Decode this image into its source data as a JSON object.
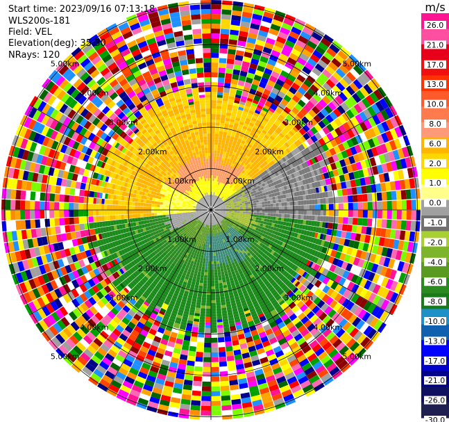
{
  "info": {
    "start_time": "Start time: 2023/09/16 07:13:18",
    "instrument": "WLS200s-181",
    "field": "Field: VEL",
    "elevation": "Elevation(deg): 35.30",
    "nrays": "NRays: 120"
  },
  "chart_data": {
    "type": "heatmap",
    "projection": "polar-ppi",
    "field": "VEL",
    "nrays": 120,
    "elevation_deg": 35.3,
    "range_rings_km": [
      1.0,
      2.0,
      3.0,
      4.0,
      5.0
    ],
    "ring_labels": [
      "1.00km",
      "2.00km",
      "3.00km",
      "4.00km",
      "5.00km"
    ],
    "colorbar": {
      "unit": "m/s",
      "tick_labels": [
        "26.0",
        "21.0",
        "17.0",
        "13.0",
        "10.0",
        "8.0",
        "6.0",
        "2.0",
        "1.0",
        "0.0",
        "-1.0",
        "-2.0",
        "-4.0",
        "-6.0",
        "-8.0",
        "-10.0",
        "-13.0",
        "-17.0",
        "-21.0",
        "-26.0",
        "-30.0"
      ],
      "colors": [
        "#ff1493",
        "#ff4fa0",
        "#e8001a",
        "#f01010",
        "#ff3300",
        "#ff5a2b",
        "#ff7b4d",
        "#ff9a78",
        "#ffb400",
        "#ffd700",
        "#ffff00",
        "#ffff8a",
        "#a0a0a0",
        "#707070",
        "#a8d030",
        "#7cb42a",
        "#5a9a20",
        "#2a8a20",
        "#1a7a1a",
        "#1e90c8",
        "#1060b0",
        "#0000ff",
        "#0000c8",
        "#00008b",
        "#101060",
        "#202050"
      ]
    }
  }
}
